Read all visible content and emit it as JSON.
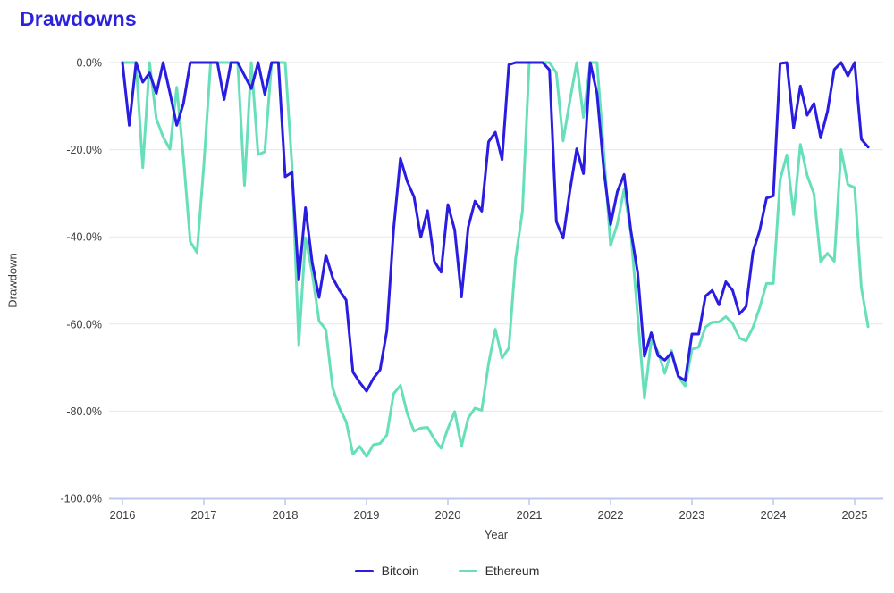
{
  "title": "Drawdowns",
  "chart_data": {
    "type": "line",
    "title": "Drawdowns",
    "xlabel": "Year",
    "ylabel": "Drawdown",
    "frequency": "monthly",
    "x_start": "2016-01",
    "x_end": "2025-03",
    "ylim": [
      -100,
      0
    ],
    "grid": "horizontal",
    "legend_position": "bottom",
    "yticks": [
      "0.0%",
      "-20.0%",
      "-40.0%",
      "-60.0%",
      "-80.0%",
      "-100.0%"
    ],
    "ytick_values": [
      0,
      -20,
      -40,
      -60,
      -80,
      -100
    ],
    "xticks": [
      "2016",
      "2017",
      "2018",
      "2019",
      "2020",
      "2021",
      "2022",
      "2023",
      "2024",
      "2025"
    ],
    "series": [
      {
        "name": "Bitcoin",
        "color": "#2a1de1",
        "values": [
          0,
          -14.4,
          0,
          -4.5,
          -2.4,
          -7.1,
          0,
          -7,
          -14.4,
          -9.4,
          0,
          0,
          0,
          0,
          0,
          -8.5,
          0,
          0,
          -3,
          -6,
          0,
          -7.3,
          0,
          0,
          -26.2,
          -25.2,
          -49.9,
          -33.3,
          -46,
          -53.9,
          -44.2,
          -49.4,
          -52.3,
          -54.5,
          -71,
          -73.4,
          -75.4,
          -72.5,
          -70.5,
          -61.6,
          -38.2,
          -22,
          -27.3,
          -30.8,
          -40.1,
          -34,
          -45.6,
          -48.1,
          -32.6,
          -38.4,
          -53.8,
          -37.8,
          -31.8,
          -34.1,
          -18.2,
          -16,
          -22.3,
          -0.5,
          0,
          0,
          0,
          0,
          0,
          -1.7,
          -36.5,
          -40.3,
          -29.4,
          -19.8,
          -25.5,
          0,
          -7.1,
          -24.6,
          -37.2,
          -29.6,
          -25.7,
          -38.6,
          -48.2,
          -67.4,
          -62,
          -67.3,
          -68.3,
          -66.6,
          -72,
          -73,
          -62.3,
          -62.3,
          -53.6,
          -52.3,
          -55.6,
          -50.3,
          -52.3,
          -57.7,
          -56,
          -43.5,
          -38.5,
          -31.1,
          -30.6,
          -0.2,
          0,
          -15,
          -5.4,
          -12.1,
          -9.4,
          -17.3,
          -11.2,
          -1.6,
          0,
          -3.1,
          0,
          -17.6,
          -19.4
        ]
      },
      {
        "name": "Ethereum",
        "color": "#67dfba",
        "values": [
          0,
          0,
          0,
          -24.1,
          0,
          -12.9,
          -17.1,
          -19.9,
          -5.7,
          -21.8,
          -41.1,
          -43.6,
          -23.5,
          0,
          0,
          0,
          0,
          0,
          -28.2,
          0,
          -21.1,
          -20.5,
          0,
          0,
          0,
          -23.5,
          -64.8,
          -40.2,
          -48.4,
          -59.3,
          -61.3,
          -74.7,
          -79.2,
          -82.4,
          -89.9,
          -88.1,
          -90.4,
          -87.7,
          -87.4,
          -85.5,
          -76,
          -74.1,
          -80.5,
          -84.6,
          -83.9,
          -83.7,
          -86.4,
          -88.5,
          -84,
          -80.1,
          -88.1,
          -81.6,
          -79.3,
          -79.8,
          -69.1,
          -61.2,
          -67.8,
          -65.5,
          -45,
          -34.1,
          0,
          0,
          0,
          0,
          -2.4,
          -18,
          -8.7,
          0,
          -12.6,
          0,
          0,
          -20.5,
          -42,
          -37,
          -29.1,
          -39.2,
          -58.1,
          -77,
          -63.7,
          -66.4,
          -71.3,
          -66.1,
          -72.1,
          -74.2,
          -65.8,
          -65.3,
          -60.7,
          -59.6,
          -59.5,
          -58.3,
          -59.9,
          -63.2,
          -63.9,
          -60.8,
          -56.2,
          -50.7,
          -50.7,
          -26.9,
          -21.2,
          -34.9,
          -18.8,
          -25.9,
          -30.2,
          -45.7,
          -43.8,
          -45.6,
          -20,
          -28,
          -28.7,
          -51.7,
          -60.6
        ]
      }
    ]
  },
  "colors": {
    "title": "#2a22dd",
    "grid": "#e7e7e7",
    "axis_line": "#bdc8ee",
    "tick_text": "#3d3d3d",
    "legend_text": "#2f2f2f"
  }
}
